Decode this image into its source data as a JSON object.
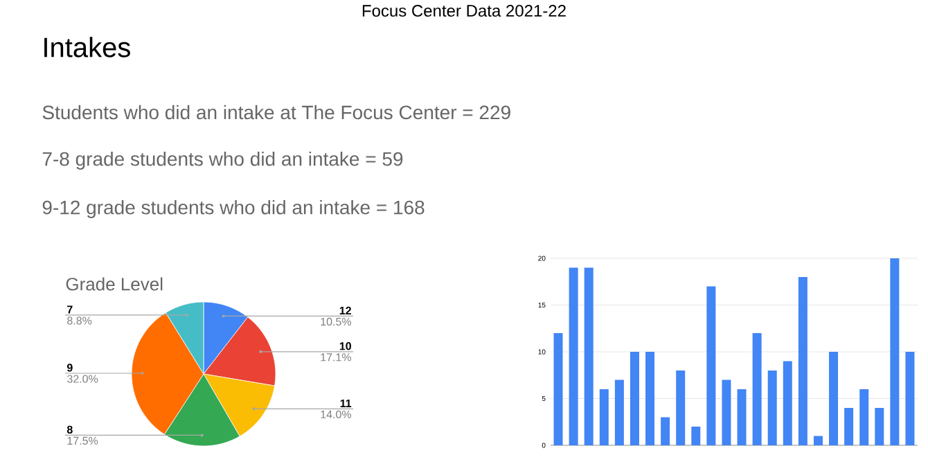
{
  "chart_data": [
    {
      "type": "other",
      "title": "Focus Center Data 2021-22",
      "subtitle": "Intakes",
      "annotations": [
        "Students who did an intake at The Focus Center = 229",
        "7-8 grade students who did an intake = 59",
        "9-12 grade students who did an intake = 168"
      ]
    },
    {
      "type": "pie",
      "title": "Grade Level",
      "categories": [
        "12",
        "10",
        "11",
        "8",
        "9",
        "7"
      ],
      "values": [
        10.5,
        17.1,
        14.0,
        17.5,
        32.0,
        8.8
      ],
      "value_labels": [
        "10.5%",
        "17.1%",
        "14.0%",
        "17.5%",
        "32.0%",
        "8.8%"
      ],
      "colors": [
        "#4285f4",
        "#ea4335",
        "#fbbc04",
        "#34a853",
        "#ff6d01",
        "#46bdc6"
      ]
    },
    {
      "type": "bar",
      "categories": [
        null,
        null,
        null,
        null,
        null,
        null,
        null,
        null,
        null,
        null,
        null,
        null,
        null,
        null,
        null,
        null,
        null,
        null,
        null,
        null,
        null,
        null,
        null,
        null
      ],
      "values": [
        12,
        19,
        19,
        6,
        7,
        10,
        10,
        3,
        8,
        2,
        17,
        7,
        6,
        12,
        8,
        9,
        18,
        1,
        10,
        4,
        6,
        4,
        20,
        10
      ],
      "color": "#4285f4",
      "ylim": [
        0,
        20
      ],
      "yticks": [
        0,
        5,
        10,
        15,
        20
      ],
      "grid": "y"
    }
  ]
}
